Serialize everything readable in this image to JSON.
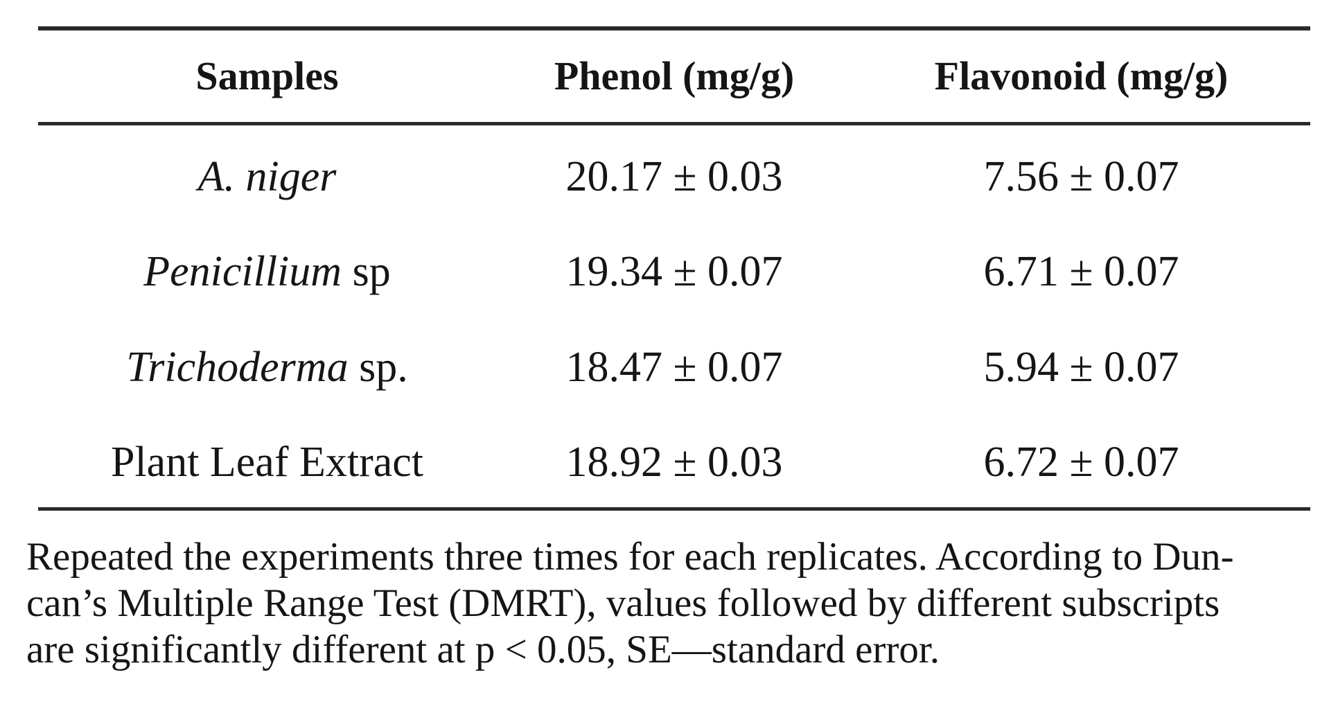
{
  "page": {
    "background": "#ffffff",
    "text_color": "#151515",
    "rule_color": "#2a2a2a"
  },
  "table": {
    "headers": {
      "samples": "Samples",
      "phenol": "Phenol (mg/g)",
      "flavonoid": "Flavonoid (mg/g)"
    },
    "rows": [
      {
        "name_italic": "A. niger",
        "name_roman": "",
        "phenol": "20.17 ± 0.03",
        "flavonoid": "7.56 ± 0.07"
      },
      {
        "name_italic": "Penicillium",
        "name_roman": " sp",
        "phenol": "19.34 ± 0.07",
        "flavonoid": "6.71 ± 0.07"
      },
      {
        "name_italic": "Trichoderma",
        "name_roman": " sp.",
        "phenol": "18.47 ± 0.07",
        "flavonoid": "5.94 ± 0.07"
      },
      {
        "name_italic": "",
        "name_roman": "Plant Leaf Extract",
        "phenol": "18.92 ± 0.03",
        "flavonoid": "6.72 ± 0.07"
      }
    ]
  },
  "footnote": {
    "lines": [
      "Repeated the experiments three times for each replicates. According to Dun-",
      "can’s Multiple Range Test (DMRT), values followed by different subscripts",
      "are significantly different at p < 0.05, SE—standard error."
    ]
  }
}
